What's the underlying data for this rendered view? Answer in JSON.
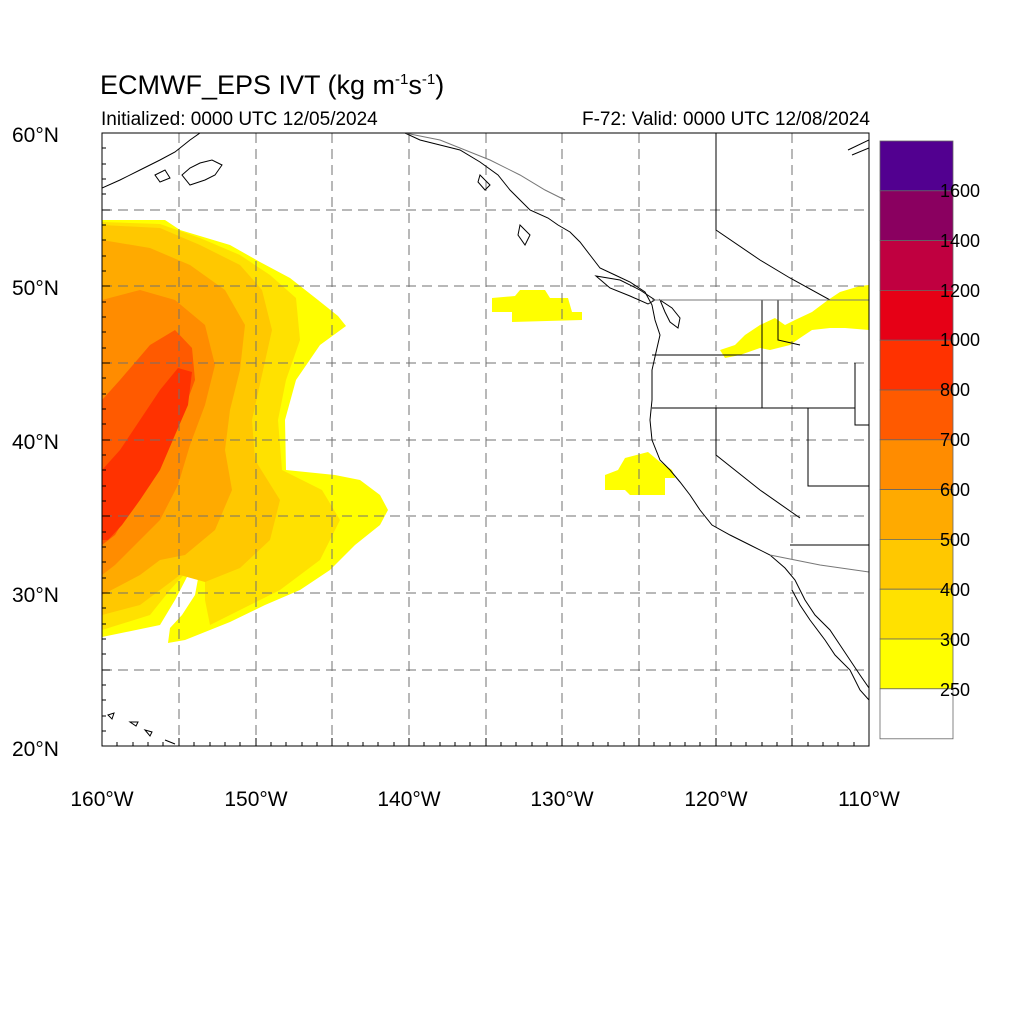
{
  "title": {
    "main": "ECMWF_EPS IVT (kg m",
    "sup1": "-1",
    "mid": "s",
    "sup2": "-1",
    "end": ")"
  },
  "subtitle": {
    "initialized": "Initialized: 0000 UTC 12/05/2024",
    "valid": "F-72: Valid: 0000 UTC 12/08/2024"
  },
  "map": {
    "lon_range": [
      -160,
      -110
    ],
    "lat_range": [
      20,
      60
    ],
    "lat_ticks": [
      {
        "value": 60,
        "label": "60°N"
      },
      {
        "value": 50,
        "label": "50°N"
      },
      {
        "value": 40,
        "label": "40°N"
      },
      {
        "value": 30,
        "label": "30°N"
      },
      {
        "value": 20,
        "label": "20°N"
      }
    ],
    "lon_ticks": [
      {
        "value": -160,
        "label": "160°W"
      },
      {
        "value": -150,
        "label": "150°W"
      },
      {
        "value": -140,
        "label": "140°W"
      },
      {
        "value": -130,
        "label": "130°W"
      },
      {
        "value": -120,
        "label": "120°W"
      },
      {
        "value": -110,
        "label": "110°W"
      }
    ],
    "grid_lon_step": 5,
    "grid_lat_step": 5,
    "grid": true
  },
  "colorbar": {
    "colors": [
      "#ffffff",
      "#ffff00",
      "#ffe100",
      "#ffc800",
      "#ffaa00",
      "#ff8c00",
      "#ff5a00",
      "#ff3200",
      "#e60016",
      "#c00040",
      "#8a0060",
      "#520090"
    ],
    "labels": [
      "250",
      "300",
      "400",
      "500",
      "600",
      "700",
      "800",
      "1000",
      "1200",
      "1400",
      "1600"
    ]
  }
}
